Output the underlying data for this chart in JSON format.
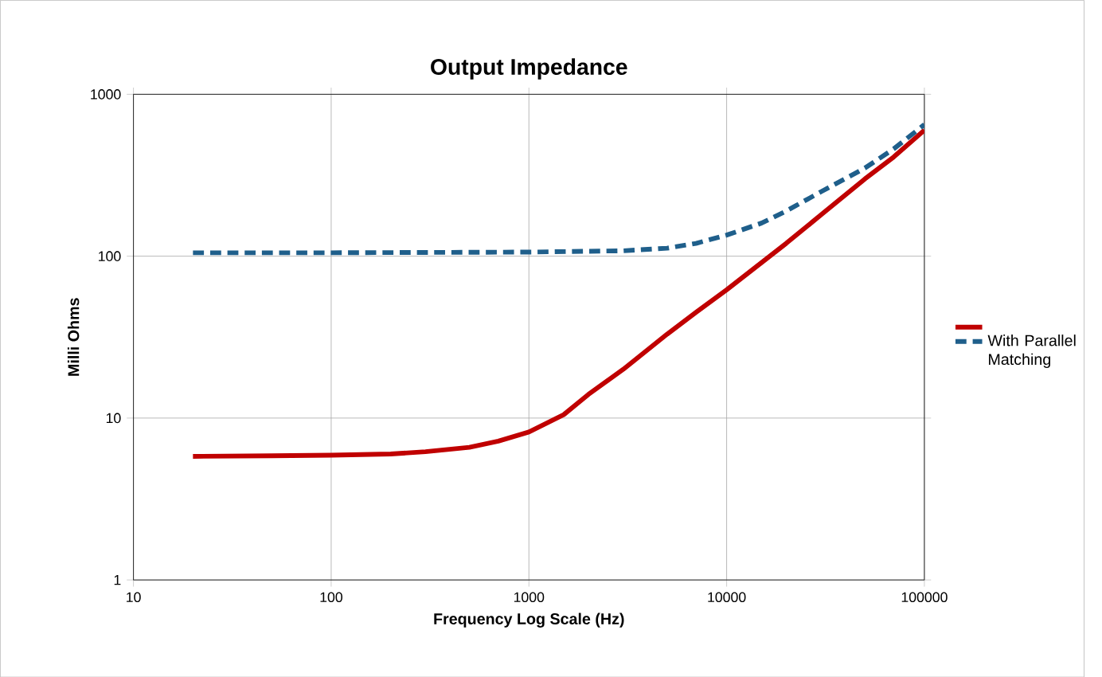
{
  "chart_data": {
    "type": "line",
    "title": "Output Impedance",
    "xlabel": "Frequency Log Scale (Hz)",
    "ylabel": "Milli Ohms",
    "log": "xy",
    "grid": true,
    "legend": "right",
    "line_style": "solid",
    "xlim": [
      10,
      100000
    ],
    "ylim": [
      1,
      1000
    ],
    "xticks": [
      10,
      100,
      1000,
      10000,
      100000
    ],
    "yticks": [
      1,
      10,
      100,
      1000
    ],
    "series": [
      {
        "color": "#c00000",
        "x": [
          20,
          50,
          100,
          200,
          300,
          500,
          700,
          1000,
          1500,
          2000,
          3000,
          5000,
          7000,
          10000,
          20000,
          30000,
          50000,
          70000,
          100000
        ],
        "values": [
          5.8,
          5.85,
          5.9,
          6.0,
          6.2,
          6.6,
          7.2,
          8.2,
          10.5,
          14,
          20,
          33,
          45,
          62,
          120,
          180,
          300,
          410,
          600
        ]
      },
      {
        "name": "With Parallel Matching",
        "color": "#1f5f8b",
        "line_style": "dashed",
        "x": [
          20,
          100,
          1000,
          3000,
          5000,
          7000,
          10000,
          15000,
          20000,
          30000,
          50000,
          70000,
          100000
        ],
        "values": [
          105,
          105,
          106,
          108,
          112,
          120,
          135,
          160,
          190,
          250,
          350,
          460,
          650
        ]
      }
    ]
  }
}
